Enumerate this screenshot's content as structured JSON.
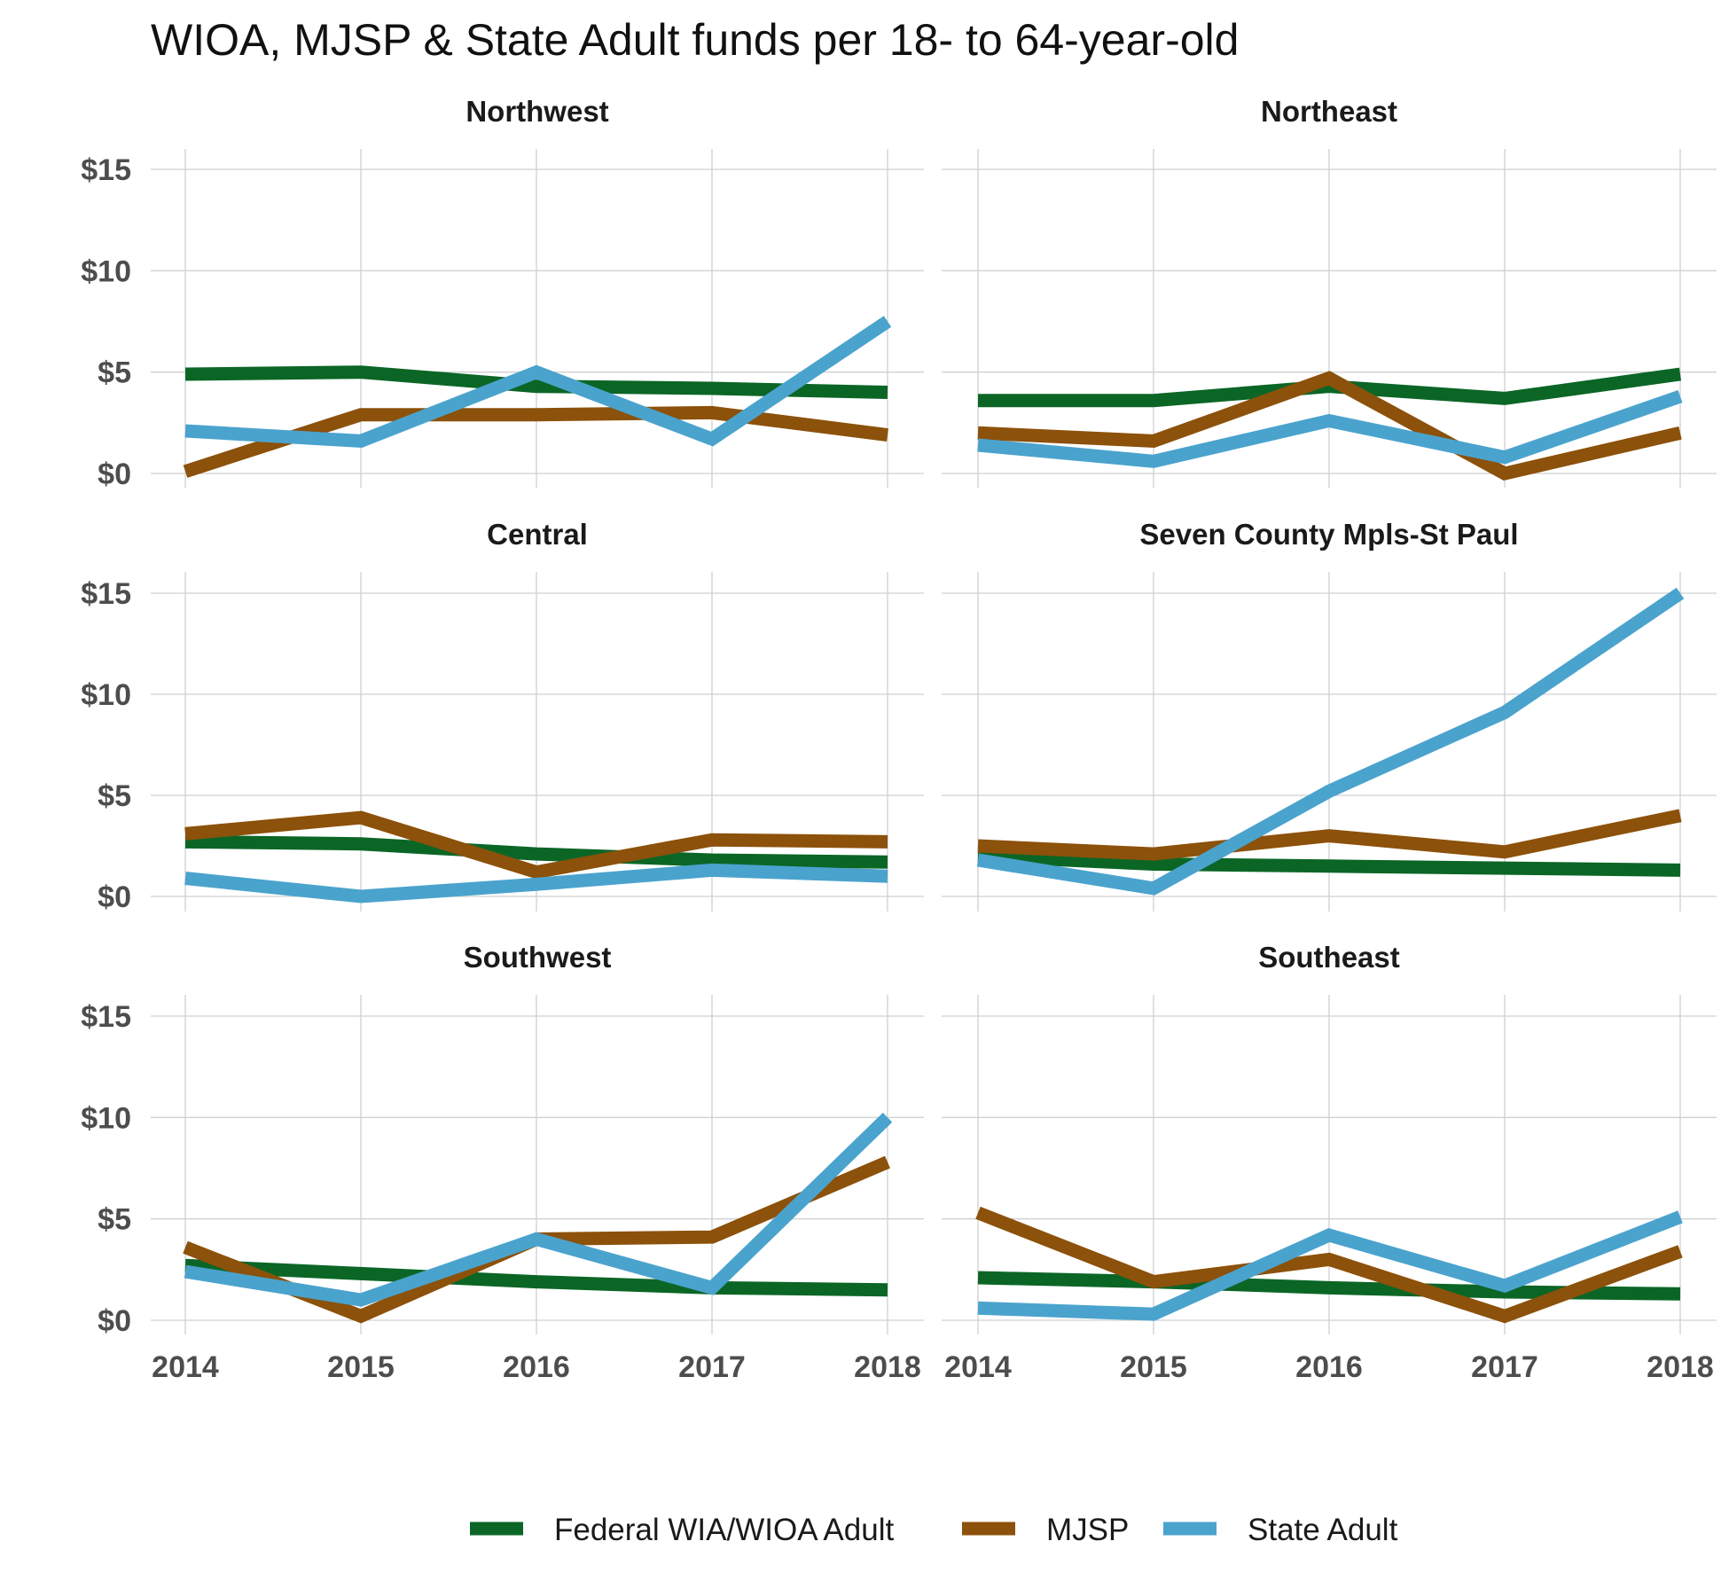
{
  "chart_data": {
    "type": "line",
    "title": "WIOA, MJSP & State Adult funds per 18- to 64-year-old",
    "xlabel": "",
    "ylabel": "",
    "x": [
      2014,
      2015,
      2016,
      2017,
      2018
    ],
    "x_tick_labels": [
      "2014",
      "2015",
      "2016",
      "2017",
      "2018"
    ],
    "ylim": [
      0,
      15
    ],
    "y_ticks": [
      0,
      5,
      10,
      15
    ],
    "y_tick_labels": [
      "$0",
      "$5",
      "$10",
      "$15"
    ],
    "grid": true,
    "legend_position": "bottom",
    "series_names": [
      "Federal WIA/WIOA Adult",
      "MJSP",
      "State Adult"
    ],
    "series_colors": [
      "#0b6626",
      "#8c510a",
      "#4aa3cd"
    ],
    "facets": [
      {
        "name": "Northwest",
        "series": [
          {
            "name": "Federal WIA/WIOA Adult",
            "values": [
              4.9,
              5.0,
              4.3,
              4.2,
              4.0
            ]
          },
          {
            "name": "MJSP",
            "values": [
              0.1,
              2.9,
              2.9,
              3.0,
              1.9
            ]
          },
          {
            "name": "State Adult",
            "values": [
              2.1,
              1.6,
              5.0,
              1.7,
              7.5
            ]
          }
        ]
      },
      {
        "name": "Northeast",
        "series": [
          {
            "name": "Federal WIA/WIOA Adult",
            "values": [
              3.6,
              3.6,
              4.3,
              3.7,
              4.9
            ]
          },
          {
            "name": "MJSP",
            "values": [
              2.0,
              1.6,
              4.7,
              0.0,
              2.0
            ]
          },
          {
            "name": "State Adult",
            "values": [
              1.4,
              0.6,
              2.6,
              0.8,
              3.8
            ]
          }
        ]
      },
      {
        "name": "Central",
        "series": [
          {
            "name": "Federal WIA/WIOA Adult",
            "values": [
              2.7,
              2.6,
              2.1,
              1.8,
              1.7
            ]
          },
          {
            "name": "MJSP",
            "values": [
              3.1,
              3.9,
              1.2,
              2.8,
              2.7
            ]
          },
          {
            "name": "State Adult",
            "values": [
              0.9,
              0.0,
              0.6,
              1.3,
              1.0
            ]
          }
        ]
      },
      {
        "name": "Seven County Mpls-St Paul",
        "series": [
          {
            "name": "Federal WIA/WIOA Adult",
            "values": [
              2.0,
              1.6,
              1.5,
              1.4,
              1.3
            ]
          },
          {
            "name": "MJSP",
            "values": [
              2.5,
              2.1,
              3.0,
              2.2,
              4.0
            ]
          },
          {
            "name": "State Adult",
            "values": [
              1.8,
              0.4,
              5.2,
              9.1,
              15.0
            ]
          }
        ]
      },
      {
        "name": "Southwest",
        "series": [
          {
            "name": "Federal WIA/WIOA Adult",
            "values": [
              2.7,
              2.3,
              1.9,
              1.6,
              1.5
            ]
          },
          {
            "name": "MJSP",
            "values": [
              3.6,
              0.2,
              4.0,
              4.1,
              7.8
            ]
          },
          {
            "name": "State Adult",
            "values": [
              2.4,
              1.0,
              4.0,
              1.6,
              10.0
            ]
          }
        ]
      },
      {
        "name": "Southeast",
        "series": [
          {
            "name": "Federal WIA/WIOA Adult",
            "values": [
              2.1,
              1.9,
              1.6,
              1.4,
              1.3
            ]
          },
          {
            "name": "MJSP",
            "values": [
              5.3,
              1.9,
              3.0,
              0.2,
              3.4
            ]
          },
          {
            "name": "State Adult",
            "values": [
              0.6,
              0.3,
              4.2,
              1.7,
              5.1
            ]
          }
        ]
      }
    ]
  }
}
